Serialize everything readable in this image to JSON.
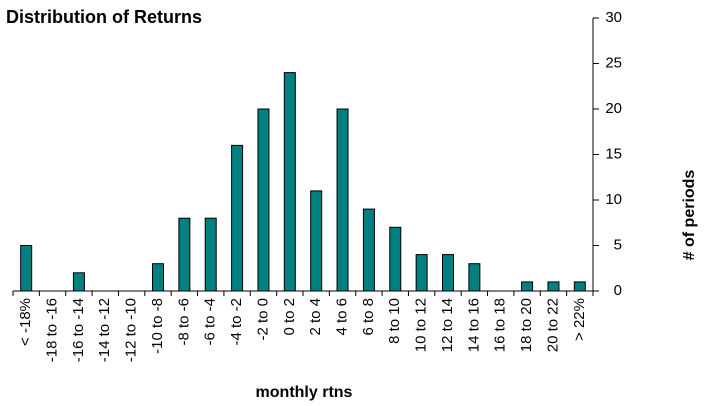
{
  "chart_data": {
    "type": "bar",
    "title": "Distribution of Returns",
    "x_label": "monthly rtns",
    "y_label": "# of periods",
    "categories": [
      "< -18%",
      "-18 to -16",
      "-16 to -14",
      "-14 to -12",
      "-12 to -10",
      "-10 to -8",
      "-8 to -6",
      "-6 to -4",
      "-4 to -2",
      "-2 to 0",
      "0 to 2",
      "2 to 4",
      "4 to 6",
      "6 to 8",
      "8 to 10",
      "10 to 12",
      "12 to 14",
      "14 to 16",
      "16 to 18",
      "18 to 20",
      "20 to 22",
      "> 22%"
    ],
    "values": [
      5,
      0,
      2,
      0,
      0,
      3,
      8,
      8,
      16,
      20,
      24,
      11,
      20,
      9,
      7,
      4,
      4,
      3,
      0,
      1,
      1,
      1
    ],
    "color": "#008080",
    "ylim": [
      0,
      30
    ],
    "yticks": [
      0,
      5,
      10,
      15,
      20,
      25,
      30
    ],
    "y_axis_side": "right",
    "grid": false
  }
}
